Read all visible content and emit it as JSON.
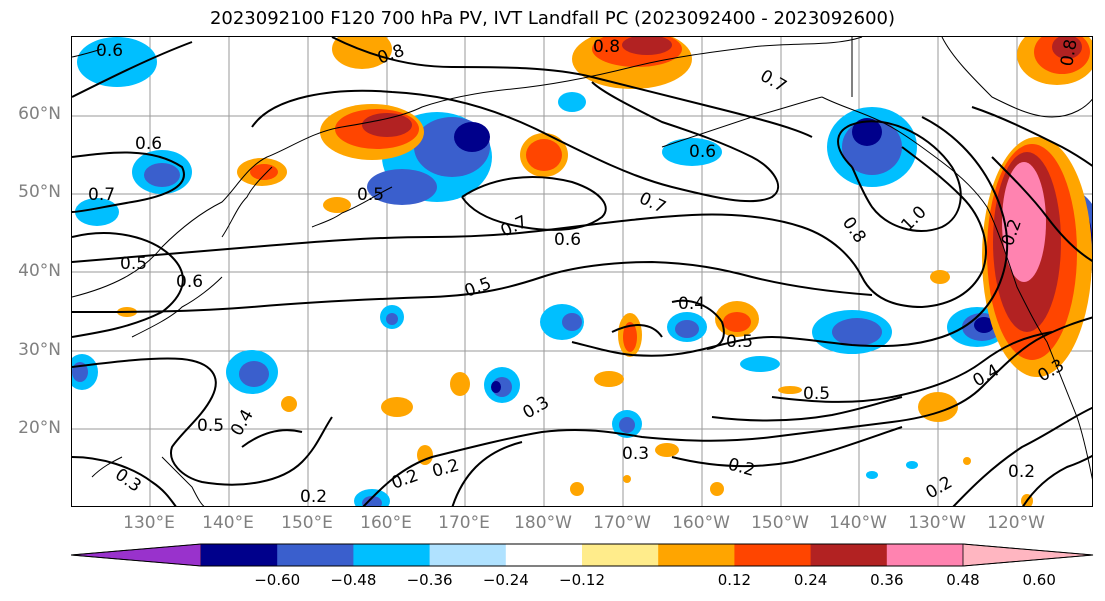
{
  "title": "2023092100 F120 700 hPa PV, IVT Landfall PC (2023092400 - 2023092600)",
  "lat_labels": [
    "60°N",
    "50°N",
    "40°N",
    "30°N",
    "20°N"
  ],
  "lon_labels": [
    "130°E",
    "140°E",
    "150°E",
    "160°E",
    "170°E",
    "180°W",
    "170°W",
    "160°W",
    "150°W",
    "140°W",
    "130°W",
    "120°W"
  ],
  "contour_labels": [
    "0.6",
    "0.8",
    "0.8",
    "0.8",
    "0.7",
    "0.6",
    "0.7",
    "0.5",
    "0.6",
    "0.5",
    "0.7",
    "0.6",
    "0.8",
    "0.7",
    "0.6",
    "1.0",
    "0.5",
    "0.4",
    "0.5",
    "0.2",
    "0.5",
    "0.4",
    "0.3",
    "0.5",
    "0.3",
    "0.2",
    "0.4",
    "0.2",
    "0.3",
    "0.3",
    "0.2",
    "0.2",
    "0.2",
    "0.2"
  ],
  "colorbar": {
    "ticks": [
      "−0.60",
      "−0.48",
      "−0.36",
      "−0.24",
      "−0.12",
      "0.12",
      "0.24",
      "0.36",
      "0.48",
      "0.60"
    ],
    "colors": [
      "#9932cc",
      "#00008b",
      "#3a5fcd",
      "#00bfff",
      "#b0e2ff",
      "#ffffff",
      "#ffec8b",
      "#ffa500",
      "#ff4500",
      "#b22222",
      "#ff83b0",
      "#ffb6c1"
    ]
  },
  "colors": {
    "neg_strong": "#00008b",
    "neg_mid": "#3a5fcd",
    "neg_weak": "#00bfff",
    "pos_weak": "#ffa500",
    "pos_mid": "#ff4500",
    "pos_strong": "#b22222",
    "pos_max": "#ff83b0"
  }
}
